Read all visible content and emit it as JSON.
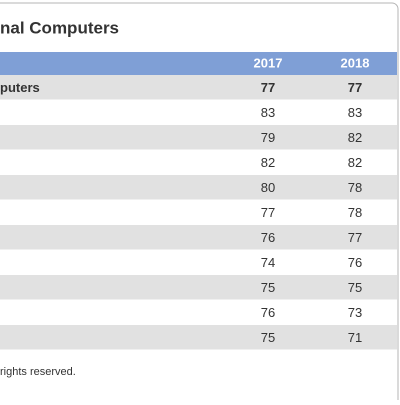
{
  "title": "nal Computers",
  "table": {
    "header": [
      "2017",
      "2018"
    ],
    "rows": [
      {
        "label": "puters",
        "values": [
          77,
          77
        ]
      },
      {
        "values": [
          83,
          83
        ]
      },
      {
        "values": [
          79,
          82
        ]
      },
      {
        "values": [
          82,
          82
        ]
      },
      {
        "values": [
          80,
          78
        ]
      },
      {
        "values": [
          77,
          78
        ]
      },
      {
        "values": [
          76,
          77
        ]
      },
      {
        "values": [
          74,
          76
        ]
      },
      {
        "values": [
          75,
          75
        ]
      },
      {
        "values": [
          76,
          73
        ]
      },
      {
        "values": [
          75,
          71
        ]
      }
    ]
  },
  "footer": "rights reserved."
}
